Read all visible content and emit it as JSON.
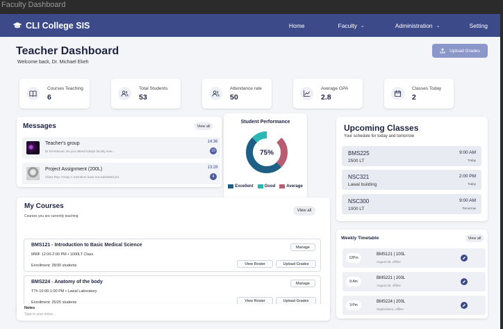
{
  "window": {
    "title": "Faculty Dashboard"
  },
  "nav": {
    "brand": "CLI College SIS",
    "items": [
      {
        "label": "Home"
      },
      {
        "label": "Faculty"
      },
      {
        "label": "Administration"
      },
      {
        "label": "Setting"
      }
    ]
  },
  "header": {
    "title": "Teacher Dashboard",
    "welcome": "Welcome back, Dr. Michael Ekeh",
    "upload_label": "Upload Grades"
  },
  "stats": [
    {
      "label": "Courses Teaching",
      "value": "6",
      "icon": "book-icon"
    },
    {
      "label": "Total Students",
      "value": "53",
      "icon": "users-icon"
    },
    {
      "label": "Attendance rate",
      "value": "50",
      "icon": "users-icon"
    },
    {
      "label": "Average GPA",
      "value": "2.8",
      "icon": "chart-line-icon"
    },
    {
      "label": "Classes Today",
      "value": "2",
      "icon": "calendar-icon"
    }
  ],
  "messages": {
    "title": "Messages",
    "view_all": "View all",
    "items": [
      {
        "name": "Teacher's group",
        "preview": "Dr Emmanuel, sis you attend todays faculty mee...",
        "time": "14:36",
        "count": "10"
      },
      {
        "name": "Project Assignment (200L)",
        "preview": "Class Rep: Group 1 members have not submitted yet.",
        "time": "13:28",
        "count": "4"
      }
    ]
  },
  "performance": {
    "title": "Student Performance",
    "center_label": "75%",
    "legend": [
      {
        "name": "Excellent",
        "color": "#1e5f86"
      },
      {
        "name": "Good",
        "color": "#2bb8b4"
      },
      {
        "name": "Average",
        "color": "#b85c72"
      }
    ]
  },
  "chart_data": {
    "type": "pie",
    "title": "Student Performance",
    "categories": [
      "Excellent",
      "Good",
      "Average"
    ],
    "values": [
      50,
      25,
      25
    ],
    "center_text": "75%"
  },
  "courses": {
    "title": "My Courses",
    "subtitle": "Courses you are currently teaching",
    "view_all": "View all",
    "manage_label": "Manage",
    "roster_label": "View Roster",
    "grades_label": "Upload Grades",
    "items": [
      {
        "title": "BMS121 - Introduction to Basic Medical Science",
        "schedule": "MWF 12:00-2:00 PM • 1000LT Class",
        "enrollment": "Enrollment: 28/30 students"
      },
      {
        "title": "BMS224 - Anatomy of the body",
        "schedule": "TTh 10:00-1:00 PM • Lawal Laboratory",
        "enrollment": "Enrollment: 25/25 students"
      }
    ]
  },
  "notes": {
    "title": "Notes",
    "placeholder": "Type in your notes..."
  },
  "upcoming": {
    "title": "Upcoming Classes",
    "subtitle": "Your schedule for today and tomorrow",
    "items": [
      {
        "code": "BMS225",
        "location": "2500 LT",
        "time": "9:00 AM",
        "day": "Today"
      },
      {
        "code": "NSC321",
        "location": "Lawal building",
        "time": "2:00 PM",
        "day": "Today"
      },
      {
        "code": "NSC300",
        "location": "1000 LT",
        "time": "9:00 AM",
        "day": "Tomorrow"
      }
    ]
  },
  "timetable": {
    "title": "Weekly Timetable",
    "view_all": "View all",
    "items": [
      {
        "time": "12Pm",
        "course": "BMS121 | 100L",
        "meta": "August 28, offline"
      },
      {
        "time": "9:Am",
        "course": "BMS221 | 200L",
        "meta": "August 29, offline"
      },
      {
        "time": "3:Pm",
        "course": "BMS224 | 200L",
        "meta": "September2, offline"
      }
    ]
  }
}
